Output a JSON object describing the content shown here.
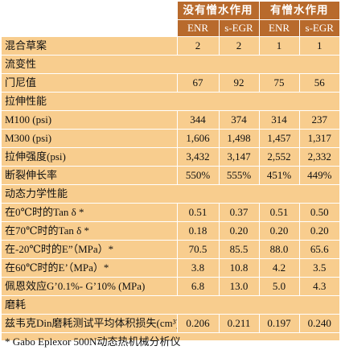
{
  "header": {
    "group1": "没有憎水作用",
    "group2": "有憎水作用",
    "sub": [
      "ENR",
      "s-EGR",
      "ENR",
      "s-EGR"
    ]
  },
  "rows": [
    {
      "type": "data",
      "label": "混合草案",
      "values": [
        "2",
        "2",
        "1",
        "1"
      ]
    },
    {
      "type": "section",
      "label": "流变性"
    },
    {
      "type": "data",
      "label": "门尼值",
      "values": [
        "67",
        "92",
        "75",
        "56"
      ]
    },
    {
      "type": "section",
      "label": "拉伸性能"
    },
    {
      "type": "data",
      "label": "M100 (psi)",
      "values": [
        "344",
        "374",
        "314",
        "237"
      ]
    },
    {
      "type": "data",
      "label": "M300 (psi)",
      "values": [
        "1,606",
        "1,498",
        "1,457",
        "1,317"
      ]
    },
    {
      "type": "data",
      "label": "拉伸强度(psi)",
      "values": [
        "3,432",
        "3,147",
        "2,552",
        "2,332"
      ]
    },
    {
      "type": "data",
      "label": "断裂伸长率",
      "values": [
        "550%",
        "555%",
        "451%",
        "449%"
      ]
    },
    {
      "type": "section",
      "label": "动态力学性能"
    },
    {
      "type": "data",
      "label": "在0℃时的Tan δ *",
      "values": [
        "0.51",
        "0.37",
        "0.51",
        "0.50"
      ]
    },
    {
      "type": "data",
      "label": "在70℃时的Tan δ *",
      "values": [
        "0.18",
        "0.20",
        "0.20",
        "0.20"
      ]
    },
    {
      "type": "data",
      "label": "在-20℃时的E”（MPa）*",
      "values": [
        "70.5",
        "85.5",
        "88.0",
        "65.6"
      ]
    },
    {
      "type": "data",
      "label": "在60℃时的E’（MPa）*",
      "values": [
        "3.8",
        "10.8",
        "4.2",
        "3.5"
      ]
    },
    {
      "type": "data",
      "label": "佩恩效应G’0.1%- G’10% (MPa)",
      "values": [
        "6.8",
        "13.0",
        "5.0",
        "4.3"
      ]
    },
    {
      "type": "section",
      "label": "磨耗"
    },
    {
      "type": "data",
      "label": "兹韦克Din磨耗测试平均体积损失(cm³)",
      "values": [
        "0.206",
        "0.211",
        "0.197",
        "0.240"
      ]
    }
  ],
  "footnote": "* Gabo Eplexor 500N动态热机械分析仪"
}
